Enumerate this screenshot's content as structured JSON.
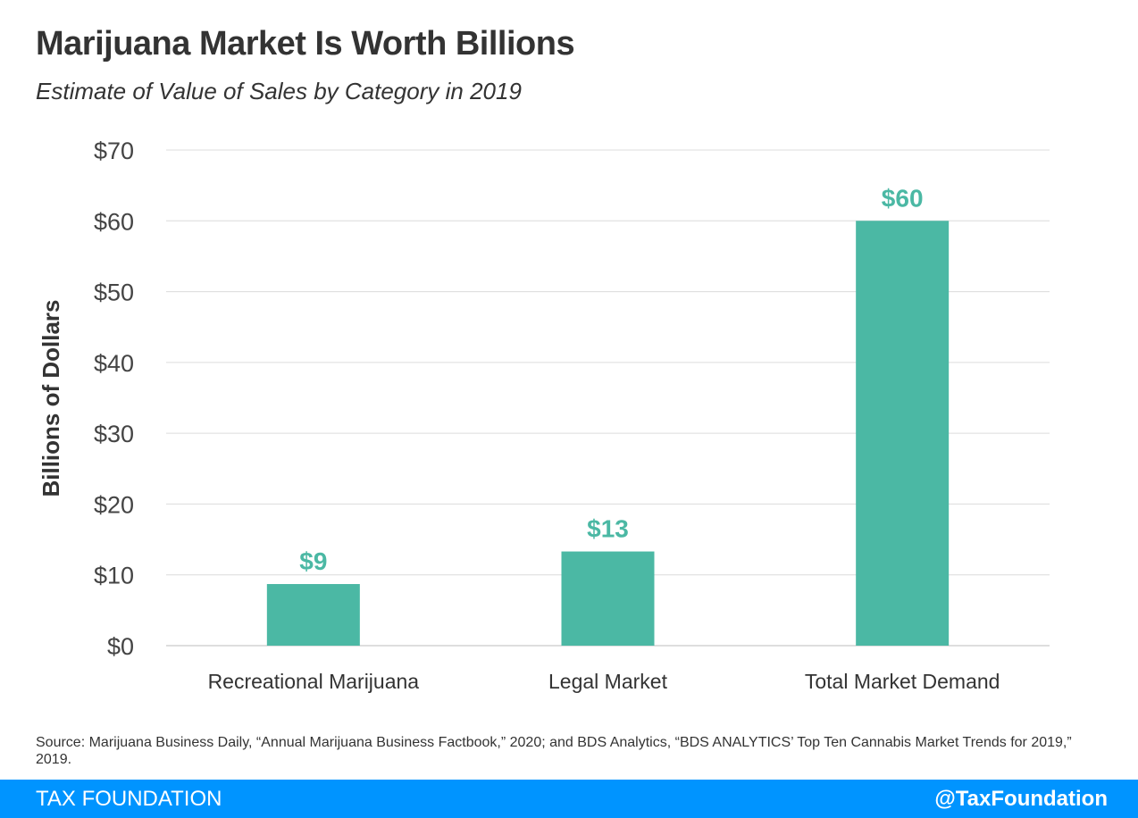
{
  "header": {
    "title": "Marijuana Market Is Worth Billions",
    "subtitle": "Estimate of Value of Sales by Category in 2019"
  },
  "chart_data": {
    "type": "bar",
    "title": "Marijuana Market Is Worth Billions",
    "subtitle": "Estimate of Value of Sales by Category in 2019",
    "xlabel": "",
    "ylabel": "Billions of Dollars",
    "categories": [
      "Recreational Marijuana",
      "Legal Market",
      "Total Market Demand"
    ],
    "values": [
      8.7,
      13.3,
      60
    ],
    "data_labels": [
      "$9",
      "$13",
      "$60"
    ],
    "ylim": [
      0,
      70
    ],
    "yticks": [
      0,
      10,
      20,
      30,
      40,
      50,
      60,
      70
    ],
    "ytick_labels": [
      "$0",
      "$10",
      "$20",
      "$30",
      "$40",
      "$50",
      "$60",
      "$70"
    ],
    "grid": true,
    "legend": "none",
    "bar_color": "#4bb8a4",
    "label_color": "#4bb8a4"
  },
  "source": "Source: Marijuana Business Daily, “Annual Marijuana Business Factbook,” 2020; and BDS Analytics, “BDS ANALYTICS’ Top Ten Cannabis Market Trends for 2019,” 2019.",
  "footer": {
    "brand": "TAX FOUNDATION",
    "handle": "@TaxFoundation",
    "color": "#0094ff"
  }
}
